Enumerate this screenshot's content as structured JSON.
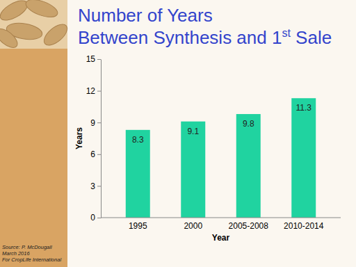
{
  "chart_data": {
    "type": "bar",
    "title": "Number of Years Between Synthesis and 1st Sale",
    "x_label": "Year",
    "y_label": "Years",
    "categories": [
      "1995",
      "2000",
      "2005-2008",
      "2010-2014"
    ],
    "values": [
      8.3,
      9.1,
      9.8,
      11.3
    ],
    "color": "#20d3a0",
    "ylim": [
      0,
      15
    ],
    "yticks": [
      0,
      3,
      6,
      9,
      12,
      15
    ],
    "grid": false,
    "data_labels": true,
    "annotations": [
      "Source: P. McDougall",
      "March 2016",
      "For CropLife International"
    ]
  }
}
